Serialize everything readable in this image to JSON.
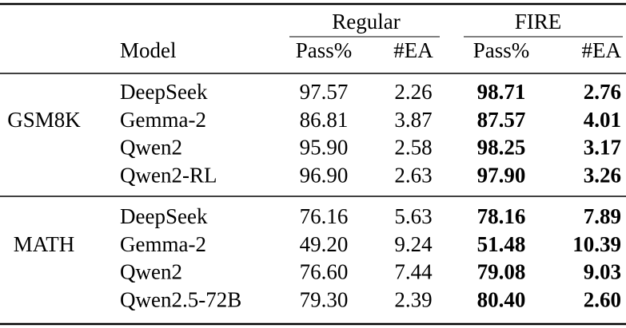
{
  "header": {
    "groups": [
      "Regular",
      "FIRE"
    ],
    "columns": [
      "Model",
      "Pass%",
      "#EA",
      "Pass%",
      "#EA"
    ]
  },
  "sections": [
    {
      "dataset": "GSM8K",
      "rows": [
        [
          "DeepSeek",
          "97.57",
          "2.26",
          "98.71",
          "2.76"
        ],
        [
          "Gemma-2",
          "86.81",
          "3.87",
          "87.57",
          "4.01"
        ],
        [
          "Qwen2",
          "95.90",
          "2.58",
          "98.25",
          "3.17"
        ],
        [
          "Qwen2-RL",
          "96.90",
          "2.63",
          "97.90",
          "3.26"
        ]
      ]
    },
    {
      "dataset": "MATH",
      "rows": [
        [
          "DeepSeek",
          "76.16",
          "5.63",
          "78.16",
          "7.89"
        ],
        [
          "Gemma-2",
          "49.20",
          "9.24",
          "51.48",
          "10.39"
        ],
        [
          "Qwen2",
          "76.60",
          "7.44",
          "79.08",
          "9.03"
        ],
        [
          "Qwen2.5-72B",
          "79.30",
          "2.39",
          "80.40",
          "2.60"
        ]
      ]
    }
  ]
}
